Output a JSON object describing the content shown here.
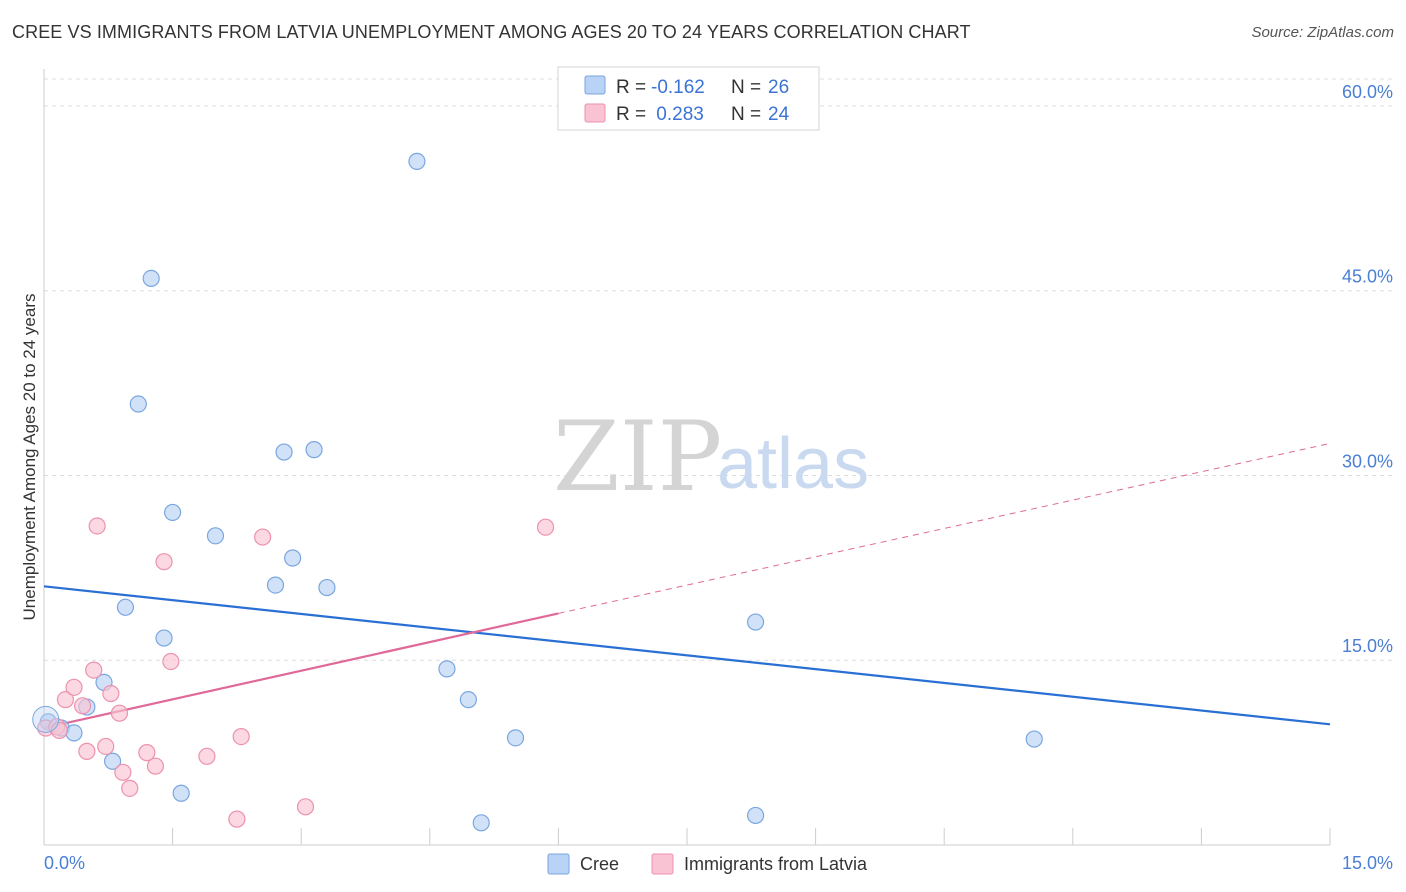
{
  "header": {
    "title": "CREE VS IMMIGRANTS FROM LATVIA UNEMPLOYMENT AMONG AGES 20 TO 24 YEARS CORRELATION CHART",
    "source": "Source: ZipAtlas.com"
  },
  "watermark": {
    "zip": "ZIP",
    "atlas": "atlas"
  },
  "legend": {
    "rows": [
      {
        "r_label": "R =",
        "r_value": "-0.162",
        "n_label": "N =",
        "n_value": "26"
      },
      {
        "r_label": "R =",
        "r_value": " 0.283",
        "n_label": "N =",
        "n_value": "24"
      }
    ]
  },
  "colors": {
    "cree_fill": "#b8d3f5",
    "cree_stroke": "#7aa6e0",
    "cree_line": "#2a6fd4",
    "latvia_fill": "#f9c3d3",
    "latvia_stroke": "#ec92ae",
    "latvia_line": "#e0699a",
    "tick_label": "#4a7fd4",
    "grid": "#dddddd"
  },
  "chart_data": {
    "type": "scatter",
    "title": "CREE VS IMMIGRANTS FROM LATVIA UNEMPLOYMENT AMONG AGES 20 TO 24 YEARS CORRELATION CHART",
    "xlabel": "",
    "ylabel": "Unemployment Among Ages 20 to 24 years",
    "xlim": [
      0,
      15
    ],
    "ylim": [
      0,
      63
    ],
    "x_tick_labels": [
      "0.0%",
      "15.0%"
    ],
    "y_ticks": [
      15,
      30,
      45,
      60
    ],
    "y_tick_labels": [
      "15.0%",
      "30.0%",
      "45.0%",
      "60.0%"
    ],
    "legend_position": "top-center",
    "series": [
      {
        "name": "Cree",
        "r": -0.162,
        "n": 26,
        "points": [
          {
            "x": 0.05,
            "y": 10.0
          },
          {
            "x": 0.2,
            "y": 9.5
          },
          {
            "x": 0.35,
            "y": 9.1
          },
          {
            "x": 0.5,
            "y": 11.2
          },
          {
            "x": 0.7,
            "y": 13.2
          },
          {
            "x": 0.8,
            "y": 6.8
          },
          {
            "x": 0.95,
            "y": 19.3
          },
          {
            "x": 1.1,
            "y": 35.8
          },
          {
            "x": 1.25,
            "y": 46.0
          },
          {
            "x": 1.4,
            "y": 16.8
          },
          {
            "x": 1.5,
            "y": 27.0
          },
          {
            "x": 1.6,
            "y": 4.2
          },
          {
            "x": 2.0,
            "y": 25.1
          },
          {
            "x": 2.7,
            "y": 21.1
          },
          {
            "x": 2.8,
            "y": 31.9
          },
          {
            "x": 2.9,
            "y": 23.3
          },
          {
            "x": 3.15,
            "y": 32.1
          },
          {
            "x": 3.3,
            "y": 20.9
          },
          {
            "x": 4.35,
            "y": 55.5
          },
          {
            "x": 4.7,
            "y": 14.3
          },
          {
            "x": 4.95,
            "y": 11.8
          },
          {
            "x": 5.1,
            "y": 1.8
          },
          {
            "x": 5.5,
            "y": 8.7
          },
          {
            "x": 8.3,
            "y": 18.1
          },
          {
            "x": 8.3,
            "y": 2.4
          },
          {
            "x": 11.55,
            "y": 8.6
          }
        ]
      },
      {
        "name": "Immigrants from Latvia",
        "r": 0.283,
        "n": 24,
        "points": [
          {
            "x": 0.02,
            "y": 9.5
          },
          {
            "x": 0.15,
            "y": 9.6
          },
          {
            "x": 0.18,
            "y": 9.3
          },
          {
            "x": 0.25,
            "y": 11.8
          },
          {
            "x": 0.35,
            "y": 12.8
          },
          {
            "x": 0.45,
            "y": 11.3
          },
          {
            "x": 0.5,
            "y": 7.6
          },
          {
            "x": 0.58,
            "y": 14.2
          },
          {
            "x": 0.62,
            "y": 25.9
          },
          {
            "x": 0.72,
            "y": 8.0
          },
          {
            "x": 0.78,
            "y": 12.3
          },
          {
            "x": 0.88,
            "y": 10.7
          },
          {
            "x": 0.92,
            "y": 5.9
          },
          {
            "x": 1.0,
            "y": 4.6
          },
          {
            "x": 1.2,
            "y": 7.5
          },
          {
            "x": 1.3,
            "y": 6.4
          },
          {
            "x": 1.4,
            "y": 23.0
          },
          {
            "x": 1.48,
            "y": 14.9
          },
          {
            "x": 1.9,
            "y": 7.2
          },
          {
            "x": 2.25,
            "y": 2.1
          },
          {
            "x": 2.3,
            "y": 8.8
          },
          {
            "x": 2.55,
            "y": 25.0
          },
          {
            "x": 3.05,
            "y": 3.1
          },
          {
            "x": 5.85,
            "y": 25.8
          }
        ]
      }
    ],
    "trend_lines": [
      {
        "series": "Cree",
        "x0": 0,
        "y0": 21.0,
        "x1": 15,
        "y1": 9.8,
        "style": "solid"
      },
      {
        "series": "Immigrants from Latvia",
        "x0": 0,
        "y0": 9.5,
        "x1": 6.0,
        "y1": 18.8,
        "style": "solid"
      },
      {
        "series": "Immigrants from Latvia",
        "x0": 6.0,
        "y0": 18.8,
        "x1": 15,
        "y1": 32.6,
        "style": "dashed"
      }
    ]
  }
}
